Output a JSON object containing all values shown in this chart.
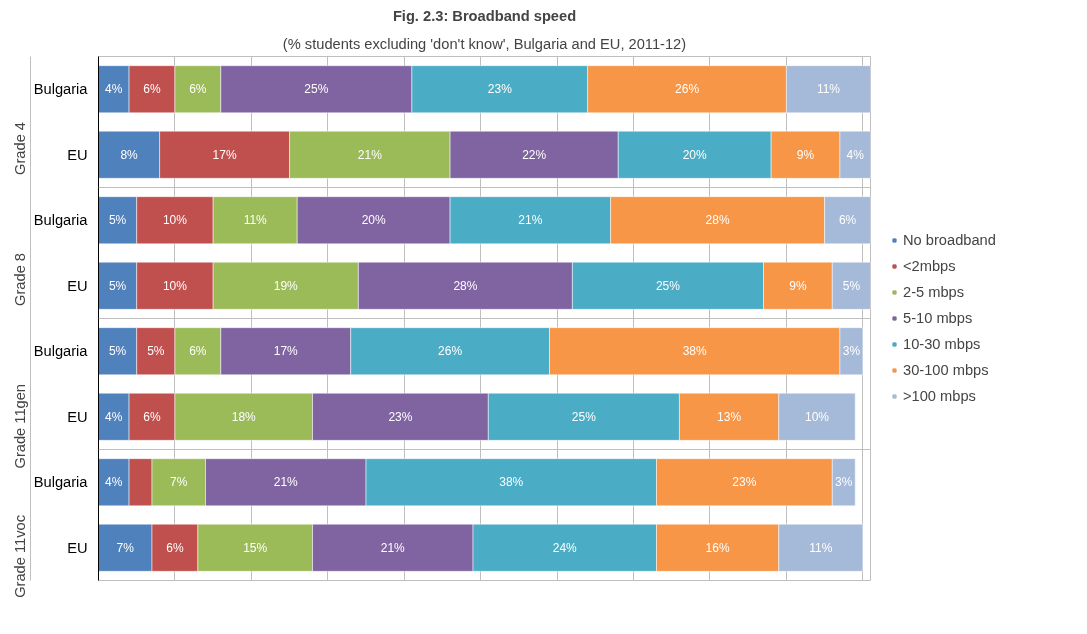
{
  "chart_data": {
    "type": "bar",
    "orientation": "horizontal",
    "stacked": true,
    "title": "Fig. 2.3: Broadband speed",
    "subtitle": "(% students excluding 'don't know', Bulgaria and EU, 2011-12)",
    "categories": [
      "Bulgaria",
      "EU",
      "Bulgaria",
      "EU",
      "Bulgaria",
      "EU",
      "Bulgaria",
      "EU"
    ],
    "annotations": [
      "Grade 4",
      "Grade 8",
      "Grade 11gen",
      "Grade 11voc"
    ],
    "series": [
      {
        "name": "No broadband",
        "color": "#4f81bd",
        "values": [
          4,
          8,
          5,
          5,
          5,
          4,
          4,
          7
        ],
        "value_labels": [
          "4%",
          "8%",
          "5%",
          "5%",
          "5%",
          "4%",
          "4%",
          "7%"
        ]
      },
      {
        "name": "<2mbps",
        "color": "#c0504d",
        "values": [
          6,
          17,
          10,
          10,
          5,
          6,
          3,
          6
        ],
        "value_labels": [
          "6%",
          "17%",
          "10%",
          "10%",
          "5%",
          "6%",
          null,
          "6%"
        ]
      },
      {
        "name": "2-5 mbps",
        "color": "#9bbb59",
        "values": [
          6,
          21,
          11,
          19,
          6,
          18,
          7,
          15
        ],
        "value_labels": [
          "6%",
          "21%",
          "11%",
          "19%",
          "6%",
          "18%",
          "7%",
          "15%"
        ]
      },
      {
        "name": "5-10 mbps",
        "color": "#8064a2",
        "values": [
          25,
          22,
          20,
          28,
          17,
          23,
          21,
          21
        ],
        "value_labels": [
          "25%",
          "22%",
          "20%",
          "28%",
          "17%",
          "23%",
          "21%",
          "21%"
        ]
      },
      {
        "name": "10-30 mbps",
        "color": "#4bacc6",
        "values": [
          23,
          20,
          21,
          25,
          26,
          25,
          38,
          24
        ],
        "value_labels": [
          "23%",
          "20%",
          "21%",
          "25%",
          "26%",
          "25%",
          "38%",
          "24%"
        ]
      },
      {
        "name": "30-100 mbps",
        "color": "#f79646",
        "values": [
          26,
          9,
          28,
          9,
          38,
          13,
          23,
          16
        ],
        "value_labels": [
          "26%",
          "9%",
          "28%",
          "9%",
          "38%",
          "13%",
          "23%",
          "16%"
        ]
      },
      {
        "name": ">100 mbps",
        "color": "#a5b9d8",
        "values": [
          11,
          4,
          6,
          5,
          3,
          10,
          3,
          11
        ],
        "value_labels": [
          "11%",
          "4%",
          "6%",
          "5%",
          "3%",
          "10%",
          "3%",
          "11%"
        ]
      }
    ],
    "xlim": [
      0,
      101
    ],
    "xticks": [
      {
        "value": 0,
        "label": null
      },
      {
        "value": 10,
        "label": null
      },
      {
        "value": 20,
        "label": null
      },
      {
        "value": 30,
        "label": null
      },
      {
        "value": 40,
        "label": null
      },
      {
        "value": 50,
        "label": null
      },
      {
        "value": 60,
        "label": null
      },
      {
        "value": 70,
        "label": null
      },
      {
        "value": 80,
        "label": null
      },
      {
        "value": 90,
        "label": null
      },
      {
        "value": 100,
        "label": null
      }
    ],
    "tick_labels": "y",
    "grid": "x",
    "legend": "right"
  }
}
